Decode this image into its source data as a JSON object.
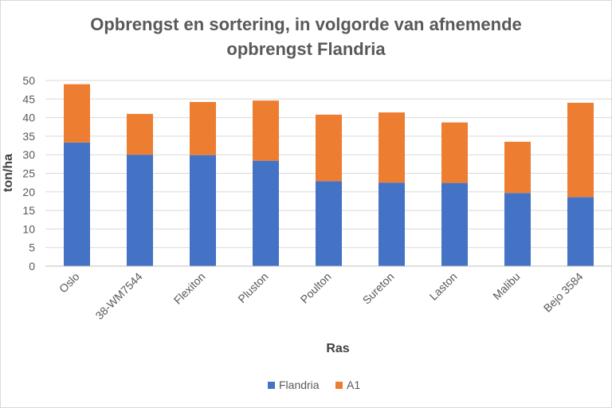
{
  "chart_data": {
    "type": "bar",
    "stacked": true,
    "title_line1": "Opbrengst en sortering, in volgorde van afnemende",
    "title_line2": "opbrengst Flandria",
    "xlabel": "Ras",
    "ylabel": "ton/ha",
    "ylim": [
      0,
      50
    ],
    "yticks": [
      "0",
      "5",
      "10",
      "15",
      "20",
      "25",
      "30",
      "35",
      "40",
      "45",
      "50"
    ],
    "grid": true,
    "legend_position": "bottom",
    "categories": [
      "Oslo",
      "38-WM7544",
      "Flexiton",
      "Pluston",
      "Poulton",
      "Sureton",
      "Laston",
      "Malibu",
      "Bejo 3584"
    ],
    "series": [
      {
        "name": "Flandria",
        "color": "#4472c4",
        "values": [
          33.3,
          30.0,
          29.9,
          28.4,
          22.9,
          22.5,
          22.4,
          19.7,
          18.6
        ]
      },
      {
        "name": "A1",
        "color": "#ed7d31",
        "values": [
          15.7,
          11.0,
          14.3,
          16.2,
          17.9,
          18.9,
          16.3,
          13.8,
          25.4
        ]
      }
    ]
  }
}
